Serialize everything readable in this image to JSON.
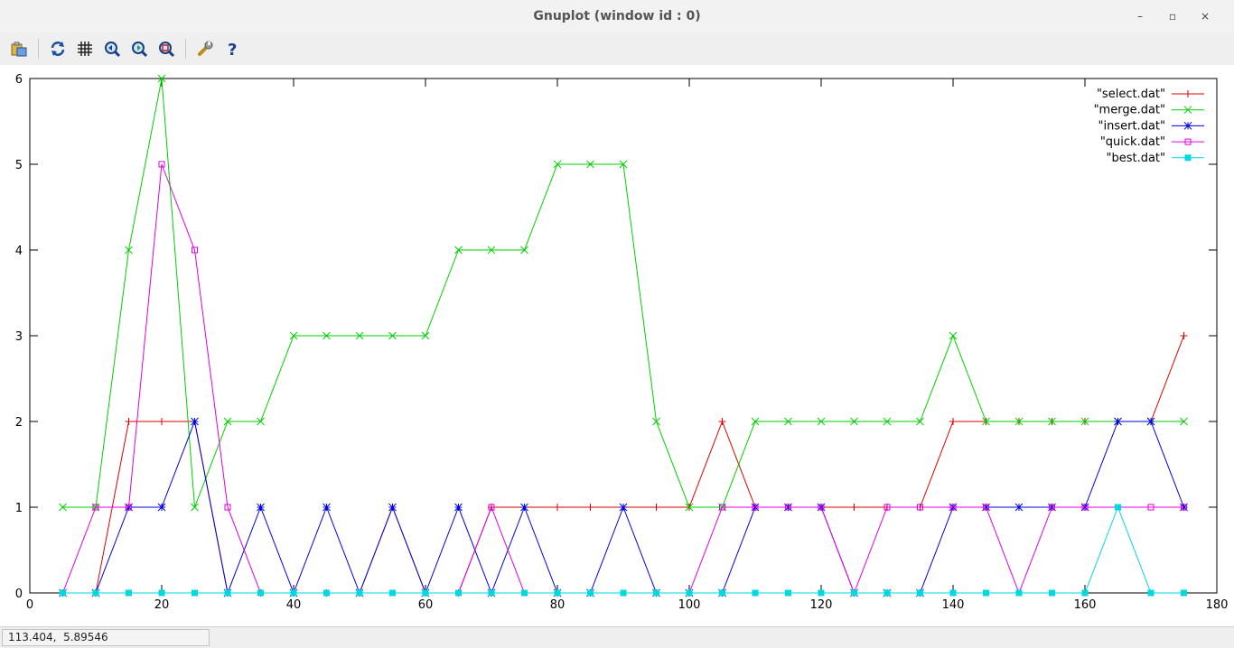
{
  "window": {
    "title": "Gnuplot (window id : 0)",
    "controls": {
      "minimize": "–",
      "maximize": "▫",
      "close": "×"
    }
  },
  "toolbar": {
    "buttons": [
      {
        "name": "copy-clipboard-button",
        "icon": "clipboard-icon"
      },
      {
        "name": "replot-button",
        "icon": "refresh-icon"
      },
      {
        "name": "grid-button",
        "icon": "grid-icon"
      },
      {
        "name": "previous-zoom-button",
        "icon": "zoom-previous-icon"
      },
      {
        "name": "next-zoom-button",
        "icon": "zoom-next-icon"
      },
      {
        "name": "autoscale-button",
        "icon": "autoscale-icon"
      },
      {
        "name": "settings-button",
        "icon": "wrench-icon"
      },
      {
        "name": "help-button",
        "icon": "help-icon"
      }
    ]
  },
  "status": {
    "coords": "113.404,  5.89546"
  },
  "chart_data": {
    "type": "line",
    "xlim": [
      0,
      180
    ],
    "ylim": [
      0,
      6
    ],
    "xticks": [
      0,
      20,
      40,
      60,
      80,
      100,
      120,
      140,
      160,
      180
    ],
    "yticks": [
      0,
      1,
      2,
      3,
      4,
      5,
      6
    ],
    "grid": false,
    "legend_position": "top-right",
    "x": [
      5,
      10,
      15,
      20,
      25,
      30,
      35,
      40,
      45,
      50,
      55,
      60,
      65,
      70,
      75,
      80,
      85,
      90,
      95,
      100,
      105,
      110,
      115,
      120,
      125,
      130,
      135,
      140,
      145,
      150,
      155,
      160,
      165,
      170,
      175
    ],
    "series": [
      {
        "name": "\"select.dat\"",
        "color": "#e00000",
        "marker": "plus",
        "values": [
          0,
          0,
          2,
          2,
          2,
          0,
          0,
          0,
          0,
          0,
          1,
          0,
          0,
          1,
          1,
          1,
          1,
          1,
          1,
          1,
          2,
          1,
          1,
          1,
          1,
          1,
          1,
          2,
          2,
          2,
          2,
          2,
          2,
          2,
          3
        ]
      },
      {
        "name": "\"merge.dat\"",
        "color": "#00d000",
        "marker": "cross",
        "values": [
          1,
          1,
          4,
          6,
          1,
          2,
          2,
          3,
          3,
          3,
          3,
          3,
          4,
          4,
          4,
          5,
          5,
          5,
          2,
          1,
          1,
          2,
          2,
          2,
          2,
          2,
          2,
          3,
          2,
          2,
          2,
          2,
          2,
          2,
          2
        ]
      },
      {
        "name": "\"insert.dat\"",
        "color": "#0000e0",
        "marker": "star",
        "values": [
          0,
          0,
          1,
          1,
          2,
          0,
          1,
          0,
          1,
          0,
          1,
          0,
          1,
          0,
          1,
          0,
          0,
          1,
          0,
          0,
          0,
          1,
          1,
          1,
          0,
          0,
          0,
          1,
          1,
          1,
          1,
          1,
          2,
          2,
          1
        ]
      },
      {
        "name": "\"quick.dat\"",
        "color": "#e000e0",
        "marker": "box",
        "values": [
          0,
          1,
          1,
          5,
          4,
          1,
          0,
          0,
          0,
          0,
          0,
          0,
          0,
          1,
          0,
          0,
          0,
          0,
          0,
          0,
          1,
          1,
          1,
          1,
          0,
          1,
          1,
          1,
          1,
          0,
          1,
          1,
          1,
          1,
          1
        ]
      },
      {
        "name": "\"best.dat\"",
        "color": "#00d8e0",
        "marker": "filledbox",
        "values": [
          0,
          0,
          0,
          0,
          0,
          0,
          0,
          0,
          0,
          0,
          0,
          0,
          0,
          0,
          0,
          0,
          0,
          0,
          0,
          0,
          0,
          0,
          0,
          0,
          0,
          0,
          0,
          0,
          0,
          0,
          0,
          0,
          1,
          0,
          0
        ]
      }
    ]
  }
}
